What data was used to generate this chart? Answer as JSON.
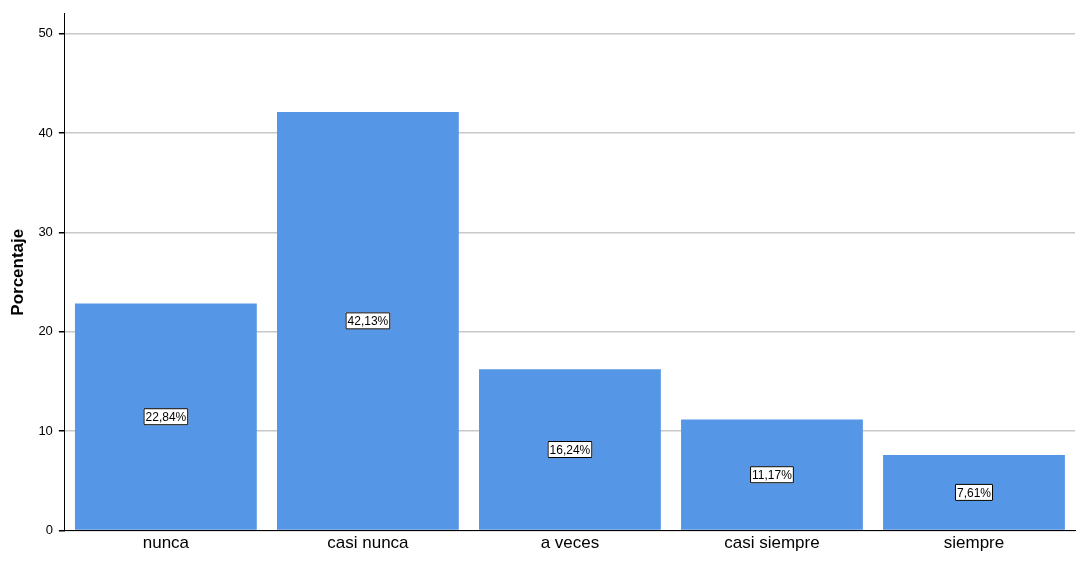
{
  "chart_data": {
    "type": "bar",
    "ylabel": "Porcentaje",
    "categories": [
      "nunca",
      "casi nunca",
      "a veces",
      "casi siempre",
      "siempre"
    ],
    "values": [
      22.84,
      42.13,
      16.24,
      11.17,
      7.61
    ],
    "value_labels": [
      "22,84%",
      "42,13%",
      "16,24%",
      "11,17%",
      "7,61%"
    ],
    "color": "#5596e6",
    "ylim": [
      0,
      52
    ],
    "yticks": [
      0,
      10,
      20,
      30,
      40,
      50
    ],
    "grid": "y",
    "legend": false
  }
}
